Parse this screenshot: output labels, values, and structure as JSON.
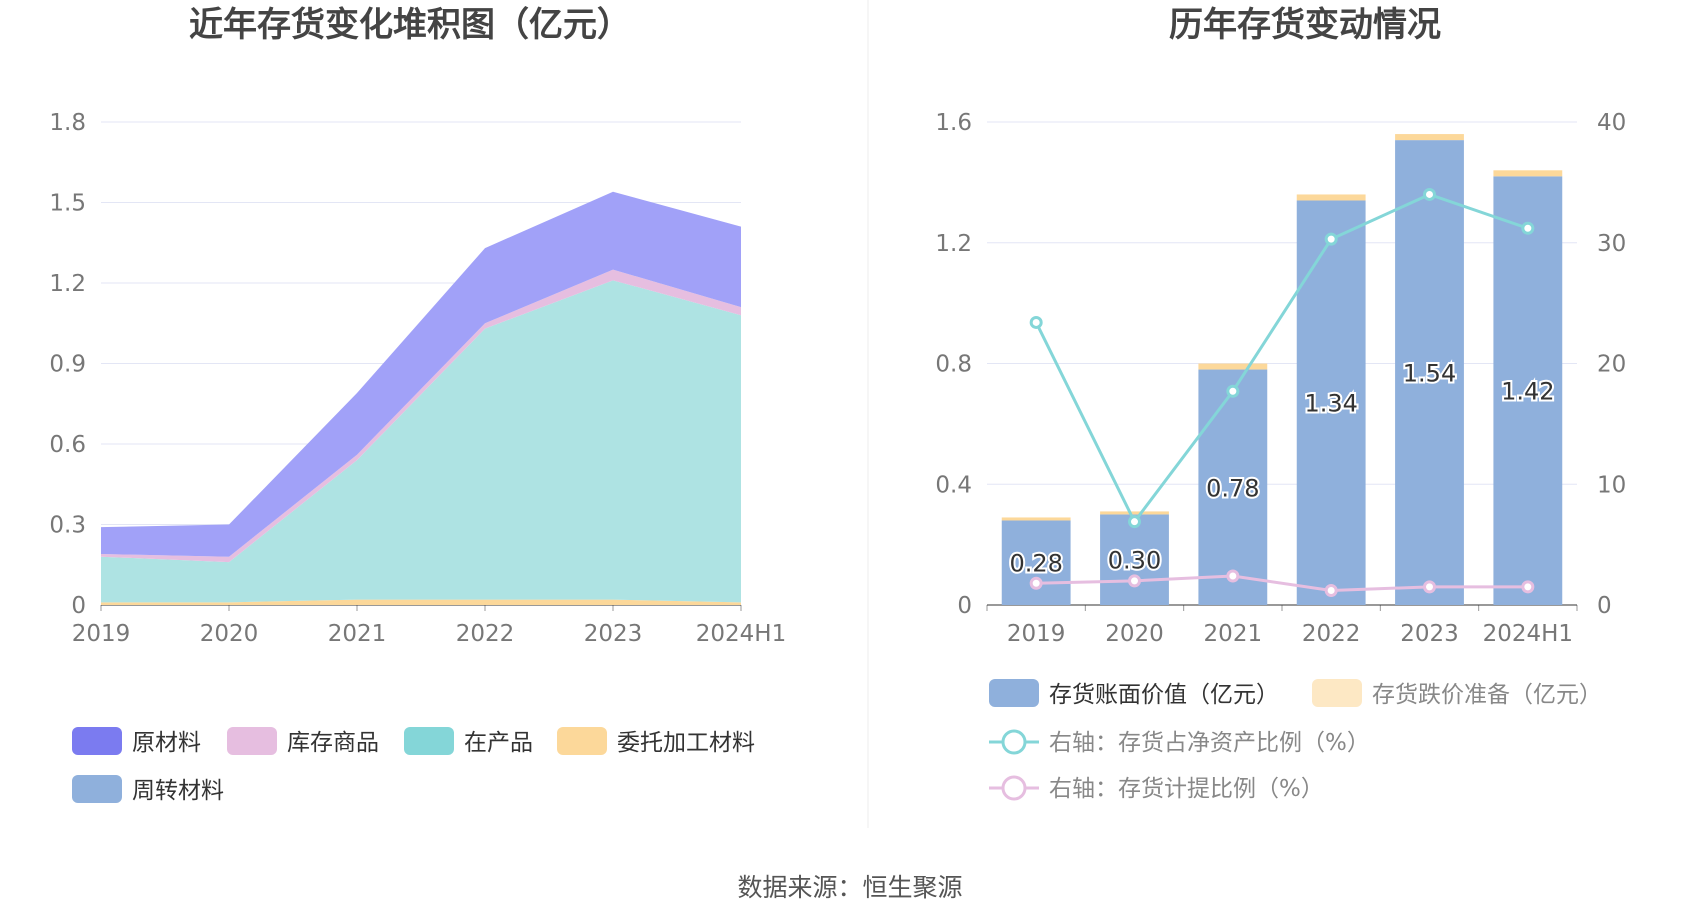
{
  "source_text": "数据来源：恒生聚源",
  "chart_data": [
    {
      "type": "area",
      "title": "近年存货变化堆积图（亿元）",
      "stacked": true,
      "categories": [
        "2019",
        "2020",
        "2021",
        "2022",
        "2023",
        "2024H1"
      ],
      "ylim": [
        0,
        1.8
      ],
      "yticks": [
        "0",
        "0.3",
        "0.6",
        "0.9",
        "1.2",
        "1.5",
        "1.8"
      ],
      "grid": true,
      "legend_position": "bottom",
      "series": [
        {
          "name": "委托加工材料",
          "color": "#fcd89a",
          "values": [
            0.01,
            0.01,
            0.02,
            0.02,
            0.02,
            0.01
          ]
        },
        {
          "name": "在产品",
          "color": "#aee3e3",
          "values": [
            0.17,
            0.15,
            0.52,
            1.01,
            1.19,
            1.07
          ]
        },
        {
          "name": "库存商品",
          "color": "#e6bee0",
          "values": [
            0.01,
            0.02,
            0.02,
            0.02,
            0.04,
            0.03
          ]
        },
        {
          "name": "原材料",
          "color": "#a1a1f8",
          "values": [
            0.1,
            0.12,
            0.23,
            0.28,
            0.29,
            0.3
          ]
        },
        {
          "name": "周转材料",
          "color": "#8fb0dc",
          "values": [
            0,
            0,
            0,
            0,
            0,
            0
          ]
        }
      ],
      "legend": [
        {
          "name": "原材料",
          "color": "#7b7bf0"
        },
        {
          "name": "库存商品",
          "color": "#e6bee0"
        },
        {
          "name": "在产品",
          "color": "#84d6d8"
        },
        {
          "name": "委托加工材料",
          "color": "#fcd89a"
        },
        {
          "name": "周转材料",
          "color": "#8fb0dc"
        }
      ]
    },
    {
      "type": "bar",
      "title": "历年存货变动情况",
      "categories": [
        "2019",
        "2020",
        "2021",
        "2022",
        "2023",
        "2024H1"
      ],
      "ylim": [
        0,
        1.6
      ],
      "yticks": [
        "0",
        "0.4",
        "0.8",
        "1.2",
        "1.6"
      ],
      "y2lim": [
        0,
        40
      ],
      "y2ticks": [
        "0",
        "10",
        "20",
        "30",
        "40"
      ],
      "grid": true,
      "legend_position": "bottom",
      "series": [
        {
          "name": "存货账面价值（亿元）",
          "kind": "bar",
          "color": "#8fb0dc",
          "values": [
            0.28,
            0.3,
            0.78,
            1.34,
            1.54,
            1.42
          ],
          "labels": [
            "0.28",
            "0.30",
            "0.78",
            "1.34",
            "1.54",
            "1.42"
          ]
        },
        {
          "name": "存货跌价准备（亿元）",
          "kind": "bar-stack",
          "color": "#fcd89a",
          "legend_color": "#fde8c4",
          "values": [
            0.01,
            0.01,
            0.02,
            0.02,
            0.02,
            0.02
          ]
        },
        {
          "name": "右轴：存货占净资产比例（%）",
          "kind": "line",
          "axis": "right",
          "color": "#84d6d8",
          "values": [
            23.4,
            6.9,
            17.7,
            30.3,
            34.0,
            31.2
          ]
        },
        {
          "name": "右轴：存货计提比例（%）",
          "kind": "line",
          "axis": "right",
          "color": "#e6bee0",
          "values": [
            1.8,
            2.0,
            2.4,
            1.2,
            1.5,
            1.5
          ]
        }
      ]
    }
  ]
}
